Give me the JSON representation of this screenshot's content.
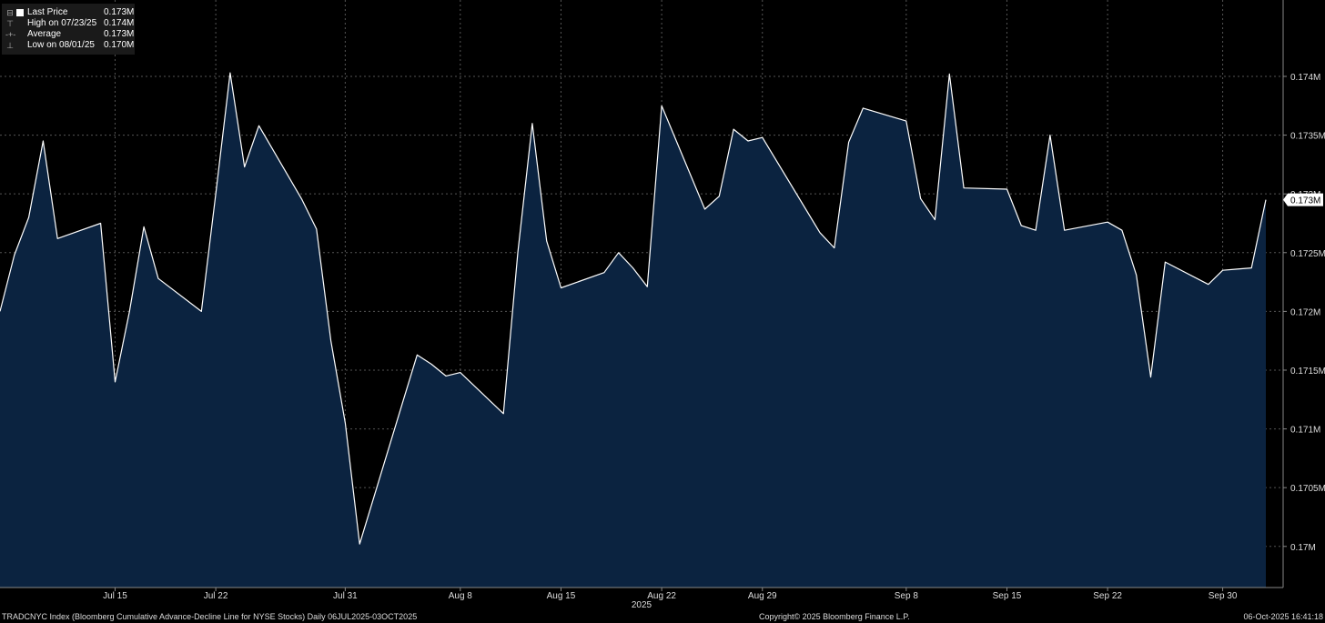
{
  "legend": {
    "items": [
      {
        "label": "Last Price",
        "value": "0.173M"
      },
      {
        "label": "High on 07/23/25",
        "value": "0.174M"
      },
      {
        "label": "Average",
        "value": "0.173M"
      },
      {
        "label": "Low on 08/01/25",
        "value": "0.170M"
      }
    ]
  },
  "footer": {
    "left": "TRADCNYC Index (Bloomberg Cumulative Advance-Decline Line for NYSE Stocks) Daily 06JUL2025-03OCT2025",
    "center": "Copyright© 2025 Bloomberg Finance L.P.",
    "right": "06-Oct-2025 16:41:18"
  },
  "colors": {
    "background": "#000000",
    "fill": "#0b2340",
    "line": "#ffffff",
    "grid": "#555555"
  },
  "chart_data": {
    "type": "area",
    "xlabel": "2025",
    "ylabel": "",
    "ylim": [
      0.16965,
      0.17465
    ],
    "y_ticks": [
      0.17,
      0.1705,
      0.171,
      0.1715,
      0.172,
      0.1725,
      0.173,
      0.1735,
      0.174
    ],
    "y_tick_labels": [
      "0.17M",
      "0.1705M",
      "0.171M",
      "0.1715M",
      "0.172M",
      "0.1725M",
      "0.173M",
      "0.1735M",
      "0.174M"
    ],
    "x_ticks": [
      {
        "label": "Jul 15",
        "date": "2025-07-15"
      },
      {
        "label": "Jul 22",
        "date": "2025-07-22"
      },
      {
        "label": "Jul 31",
        "date": "2025-07-31"
      },
      {
        "label": "Aug 8",
        "date": "2025-08-08"
      },
      {
        "label": "Aug 15",
        "date": "2025-08-15"
      },
      {
        "label": "Aug 22",
        "date": "2025-08-22"
      },
      {
        "label": "Aug 29",
        "date": "2025-08-29"
      },
      {
        "label": "Sep 8",
        "date": "2025-09-08"
      },
      {
        "label": "Sep 15",
        "date": "2025-09-15"
      },
      {
        "label": "Sep 22",
        "date": "2025-09-22"
      },
      {
        "label": "Sep 30",
        "date": "2025-09-30"
      }
    ],
    "last_value_label": "0.173M",
    "grid": true,
    "series": [
      {
        "x": [
          "2025-07-07",
          "2025-07-08",
          "2025-07-09",
          "2025-07-10",
          "2025-07-11",
          "2025-07-14",
          "2025-07-15",
          "2025-07-16",
          "2025-07-17",
          "2025-07-18",
          "2025-07-21",
          "2025-07-22",
          "2025-07-23",
          "2025-07-24",
          "2025-07-25",
          "2025-07-28",
          "2025-07-29",
          "2025-07-30",
          "2025-07-31",
          "2025-08-01",
          "2025-08-04",
          "2025-08-05",
          "2025-08-06",
          "2025-08-07",
          "2025-08-08",
          "2025-08-11",
          "2025-08-12",
          "2025-08-13",
          "2025-08-14",
          "2025-08-15",
          "2025-08-18",
          "2025-08-19",
          "2025-08-20",
          "2025-08-21",
          "2025-08-22",
          "2025-08-25",
          "2025-08-26",
          "2025-08-27",
          "2025-08-28",
          "2025-08-29",
          "2025-09-02",
          "2025-09-03",
          "2025-09-04",
          "2025-09-05",
          "2025-09-08",
          "2025-09-09",
          "2025-09-10",
          "2025-09-11",
          "2025-09-12",
          "2025-09-15",
          "2025-09-16",
          "2025-09-17",
          "2025-09-18",
          "2025-09-19",
          "2025-09-22",
          "2025-09-23",
          "2025-09-24",
          "2025-09-25",
          "2025-09-26",
          "2025-09-29",
          "2025-09-30",
          "2025-10-01",
          "2025-10-02",
          "2025-10-03"
        ],
        "values": [
          0.172,
          0.17248,
          0.1728,
          0.17345,
          0.17262,
          0.17275,
          0.1714,
          0.172,
          0.17272,
          0.17228,
          0.172,
          0.173,
          0.17403,
          0.17323,
          0.17358,
          0.17295,
          0.1727,
          0.17175,
          0.17105,
          0.17002,
          0.17123,
          0.17163,
          0.17155,
          0.17145,
          0.17148,
          0.17113,
          0.1725,
          0.1736,
          0.1726,
          0.1722,
          0.17233,
          0.1725,
          0.17237,
          0.17221,
          0.17375,
          0.17287,
          0.17298,
          0.17355,
          0.17345,
          0.17348,
          0.17267,
          0.17254,
          0.17344,
          0.17373,
          0.17362,
          0.17296,
          0.17278,
          0.17402,
          0.17305,
          0.17304,
          0.17273,
          0.17269,
          0.1735,
          0.17269,
          0.17276,
          0.17269,
          0.17231,
          0.17144,
          0.17242,
          0.17223,
          0.17235,
          0.17236,
          0.17237,
          0.17295
        ]
      }
    ]
  }
}
